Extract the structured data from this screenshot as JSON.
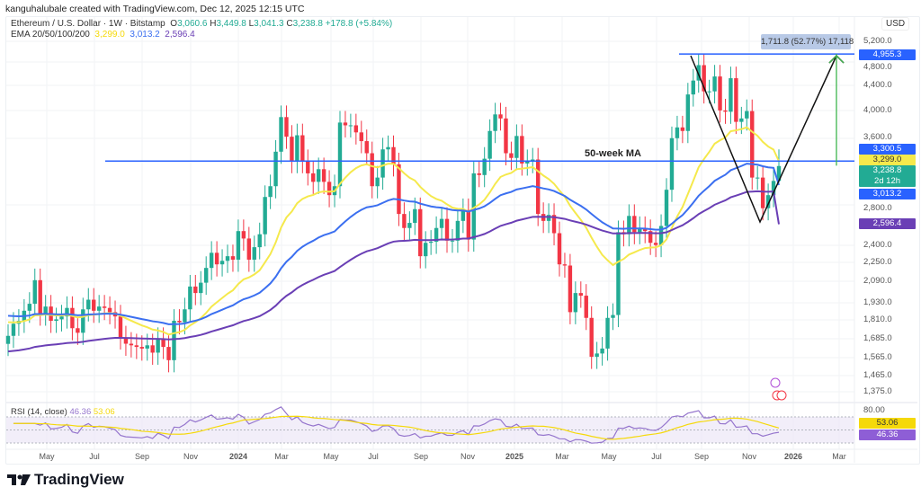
{
  "credit": "kanguhalubale created with TradingView.com, Dec 12, 2025 12:15 UTC",
  "legend": {
    "symbol": "Ethereum / U.S. Dollar · 1W · Bitstamp",
    "o_label": "O",
    "o": "3,060.6",
    "h_label": "H",
    "h": "3,449.8",
    "l_label": "L",
    "l": "3,041.3",
    "c_label": "C",
    "c": "3,238.8",
    "change": "+178.8 (+5.84%)",
    "ema_label": "EMA 20/50/100/200",
    "ema1": "3,299.0",
    "ema2": "3,013.2",
    "ema3": "2,596.4"
  },
  "currency": "USD",
  "price_ticks": [
    "5,200.0",
    "4,800.0",
    "4,400.0",
    "4,000.0",
    "3,600.0",
    "2,800.0",
    "2,400.0",
    "2,250.0",
    "2,090.0",
    "1,930.0",
    "1,810.0",
    "1,685.0",
    "1,565.0",
    "1,465.0",
    "1,375.0"
  ],
  "price_labels": {
    "target": "4,955.3",
    "ma_line": "3,300.5",
    "ema_yellow": "3,299.0",
    "last": "3,238.8",
    "countdown": "2d 12h",
    "ema_blue": "3,013.2",
    "ema_purple": "2,596.4"
  },
  "measure_label": "1,711.8 (52.77%) 17,118",
  "annotation_text": "50-week MA",
  "rsi": {
    "label": "RSI (14, close)",
    "value": "46.36",
    "signal": "53.06",
    "tick_80": "80.00"
  },
  "time_ticks": [
    "May",
    "Jul",
    "Sep",
    "Nov",
    "2024",
    "Mar",
    "May",
    "Jul",
    "Sep",
    "Nov",
    "2025",
    "Mar",
    "May",
    "Jul",
    "Sep",
    "Nov",
    "2026",
    "Mar"
  ],
  "logo": "TradingView",
  "colors": {
    "up": "#22ab94",
    "down": "#f23645",
    "ema20": "#f5e94c",
    "ema50": "#3b6ff0",
    "ema100": "#6a3fb5",
    "hline": "#2962ff",
    "rsi": "#9575cd"
  },
  "chart_data": {
    "type": "candlestick",
    "scale": "log",
    "interval": "1W",
    "ylim": [
      1300,
      5400
    ],
    "closes": [
      1700,
      1780,
      1800,
      1870,
      1920,
      2100,
      1850,
      1900,
      1800,
      1810,
      1830,
      1890,
      1750,
      1720,
      1880,
      1950,
      1870,
      1900,
      1890,
      1860,
      1830,
      1690,
      1650,
      1640,
      1630,
      1620,
      1640,
      1595,
      1680,
      1630,
      1550,
      1800,
      1790,
      1880,
      2050,
      2000,
      2080,
      2200,
      2330,
      2230,
      2260,
      2300,
      2270,
      2530,
      2460,
      2270,
      2380,
      2500,
      2880,
      3000,
      3420,
      3900,
      3620,
      3300,
      3640,
      3300,
      3150,
      3050,
      3200,
      3050,
      2900,
      3000,
      3820,
      3780,
      3780,
      3680,
      3560,
      3400,
      3000,
      3100,
      3450,
      3480,
      3260,
      2700,
      2560,
      2610,
      2750,
      2300,
      2420,
      2430,
      2560,
      2650,
      2440,
      2440,
      2630,
      2740,
      2450,
      3150,
      3130,
      3330,
      3700,
      3940,
      3880,
      3400,
      3340,
      3630,
      3270,
      3300,
      3320,
      2700,
      2630,
      2690,
      2510,
      2230,
      2220,
      1860,
      2000,
      1980,
      1820,
      1570,
      1590,
      1620,
      1820,
      1840,
      2520,
      2500,
      2680,
      2520,
      2560,
      2530,
      2420,
      2400,
      2580,
      2960,
      3600,
      3750,
      3700,
      4250,
      4480,
      4750,
      4300,
      4300,
      4550,
      4000,
      3980,
      4520,
      3830,
      3880,
      3990,
      3100,
      3100,
      2760,
      2900,
      3060.6,
      3238.8
    ],
    "ema_series": [
      {
        "period": 20,
        "start": 1800,
        "last": 3299.0
      },
      {
        "period": 50,
        "start": 1840,
        "last": 3013.2
      },
      {
        "period": 100,
        "start": 1600,
        "last": 2596.4
      }
    ],
    "hlines": [
      3300.5,
      4955.3
    ],
    "measure": {
      "from": 3243.5,
      "to": 4955.3,
      "change": 1711.8,
      "percent": 52.77,
      "ticks": 17118
    }
  }
}
